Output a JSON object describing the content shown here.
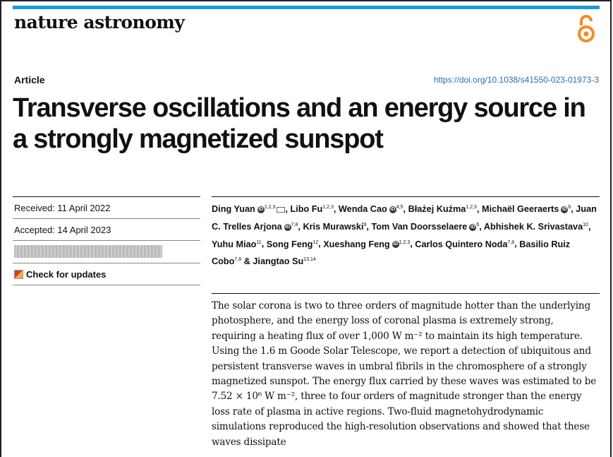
{
  "journal": "nature astronomy",
  "article_type": "Article",
  "doi": "https://doi.org/10.1038/s41550-023-01973-3",
  "title": "Transverse oscillations and an energy source in a strongly magnetized sunspot",
  "received": "Received: 11 April 2022",
  "accepted": "Accepted: 14 April 2023",
  "check_updates": "Check for updates",
  "authors": [
    {
      "name": "Ding Yuan",
      "sup": "1,2,3",
      "orcid": true,
      "mail": true
    },
    {
      "name": "Libo Fu",
      "sup": "1,2,3"
    },
    {
      "name": "Wenda Cao",
      "sup": "4,5",
      "orcid": true
    },
    {
      "name": "Błażej Kuźma",
      "sup": "1,2,3"
    },
    {
      "name": "Michaël Geeraerts",
      "sup": "6",
      "orcid": true
    },
    {
      "name": "Juan C. Trelles Arjona",
      "sup": "7,8",
      "orcid": true
    },
    {
      "name": "Kris Murawski",
      "sup": "9"
    },
    {
      "name": "Tom Van Doorsselaere",
      "sup": "6",
      "orcid": true
    },
    {
      "name": "Abhishek K. Srivastava",
      "sup": "10"
    },
    {
      "name": "Yuhu Miao",
      "sup": "11"
    },
    {
      "name": "Song Feng",
      "sup": "12"
    },
    {
      "name": "Xueshang Feng",
      "sup": "1,2,3",
      "orcid": true
    },
    {
      "name": "Carlos Quintero Noda",
      "sup": "7,8"
    },
    {
      "name": "Basilio Ruiz Cobo",
      "sup": "7,8"
    },
    {
      "name": "Jiangtao Su",
      "sup": "13,14",
      "prefix": "& "
    }
  ],
  "abstract": "The solar corona is two to three orders of magnitude hotter than the underlying photosphere, and the energy loss of coronal plasma is extremely strong, requiring a heating flux of over 1,000 W m⁻² to maintain its high temperature. Using the 1.6 m Goode Solar Telescope, we report a detection of ubiquitous and persistent transverse waves in umbral fibrils in the chromosphere of a strongly magnetized sunspot. The energy flux carried by these waves was estimated to be 7.52 × 10⁶ W m⁻², three to four orders of magnitude stronger than the energy loss rate of plasma in active regions. Two-fluid magnetohydrodynamic simulations reproduced the high-resolution observations and showed that these waves dissipate",
  "colors": {
    "accent": "#1a9bd7",
    "oa_icon": "#f28c28",
    "doi": "#2a6fa8"
  }
}
